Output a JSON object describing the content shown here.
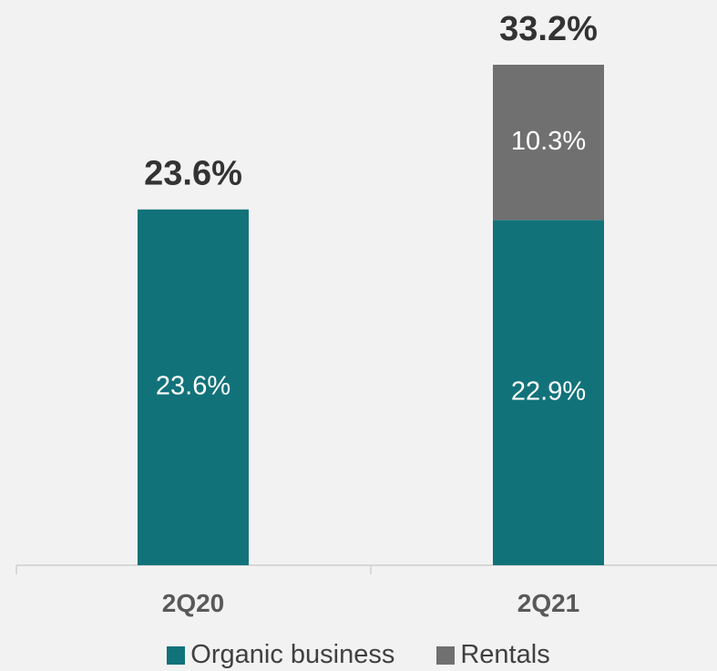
{
  "chart_data": {
    "type": "bar",
    "stacked": true,
    "categories": [
      "2Q20",
      "2Q21"
    ],
    "series": [
      {
        "name": "Organic business",
        "values": [
          23.6,
          22.9
        ],
        "labels": [
          "23.6%",
          "22.9%"
        ],
        "color": "#12727a"
      },
      {
        "name": "Rentals",
        "values": [
          0,
          10.3
        ],
        "labels": [
          "",
          "10.3%"
        ],
        "color": "#707070"
      }
    ],
    "totals": [
      23.6,
      33.2
    ],
    "total_labels": [
      "23.6%",
      "33.2%"
    ],
    "title": "",
    "xlabel": "",
    "ylabel": "",
    "ylim": [
      0,
      33.2
    ],
    "grid": false,
    "legend_position": "bottom"
  }
}
